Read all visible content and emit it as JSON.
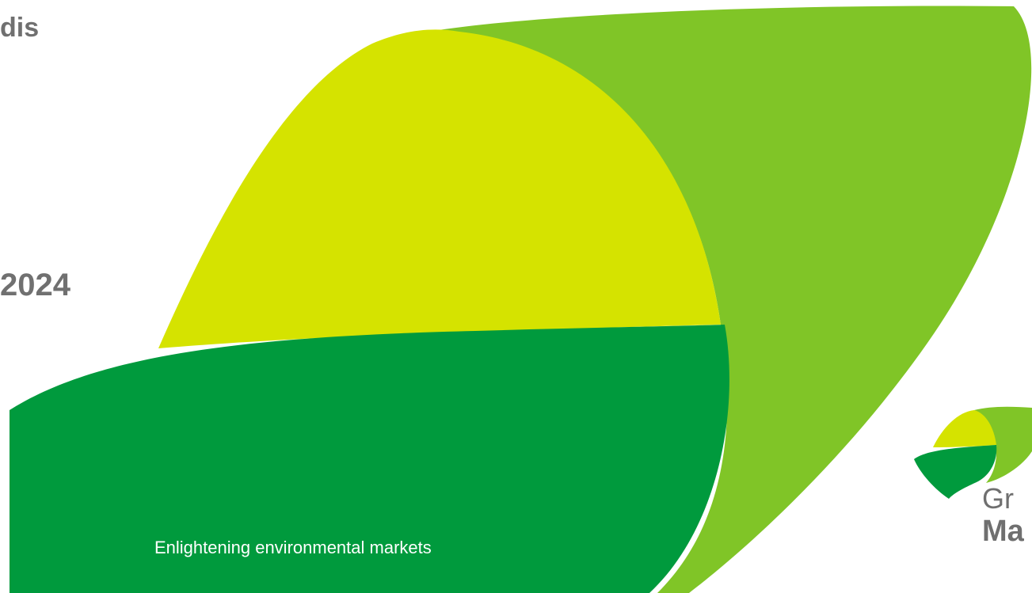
{
  "slide": {
    "headline_top": "dis",
    "headline_year": "2024",
    "tagline": "Enlightening environmental markets"
  },
  "logo": {
    "line1": "Gr",
    "line2": "Ma"
  },
  "colors": {
    "light_green": "#80C527",
    "yellow_green": "#D5E300",
    "dark_green": "#009A3D",
    "text_gray": "#707070"
  }
}
